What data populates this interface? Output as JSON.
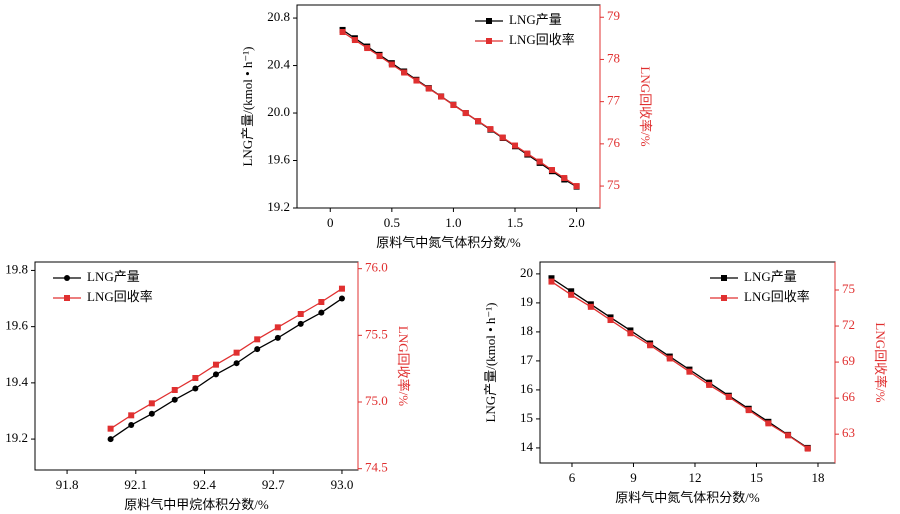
{
  "chart_data": [
    {
      "type": "line",
      "xlabel": "原料气中氮气体积分数/%",
      "ylabel": "LNG产量/(kmol • h⁻¹)",
      "y2label": "LNG回收率/%",
      "x": [
        0.1,
        0.2,
        0.3,
        0.4,
        0.5,
        0.6,
        0.7,
        0.8,
        0.9,
        1.0,
        1.1,
        1.2,
        1.3,
        1.4,
        1.5,
        1.6,
        1.7,
        1.8,
        1.9,
        2.0
      ],
      "xlim": [
        -0.27,
        2.19
      ],
      "xticks": [
        0,
        0.5,
        {
          "value": 1,
          "label": "1.0"
        },
        1.5,
        {
          "value": 2,
          "label": "2.0"
        }
      ],
      "ylim": [
        19.2,
        20.91
      ],
      "yticks": [
        19.2,
        19.6,
        {
          "value": 20,
          "label": "20.0"
        },
        20.4,
        20.8
      ],
      "y2lim": [
        74.48,
        79.29
      ],
      "y2ticks": [
        75,
        76,
        77,
        78,
        79
      ],
      "legend": "upper right",
      "series": [
        {
          "name": "LNG产量",
          "color": "#000000",
          "marker": "square",
          "values": [
            20.7,
            20.63,
            20.56,
            20.49,
            20.42,
            20.35,
            20.28,
            20.21,
            20.14,
            20.07,
            20.0,
            19.93,
            19.86,
            19.79,
            19.72,
            19.65,
            19.58,
            19.51,
            19.44,
            19.38
          ]
        },
        {
          "name": "LNG回收率",
          "color": "#e03030",
          "marker": "square",
          "axis": "y2",
          "values": [
            78.65,
            78.46,
            78.27,
            78.08,
            77.88,
            77.69,
            77.5,
            77.31,
            77.12,
            76.92,
            76.73,
            76.54,
            76.35,
            76.15,
            75.96,
            75.77,
            75.58,
            75.38,
            75.19,
            75.0
          ]
        }
      ]
    },
    {
      "type": "line",
      "xlabel": "原料气中甲烷体积分数/%",
      "ylabel": "LNG产量/(kmol • h⁻¹)",
      "y2label": "LNG回收率/%",
      "x": [
        91.99,
        92.08,
        92.17,
        92.27,
        92.36,
        92.45,
        92.54,
        92.63,
        92.72,
        92.82,
        92.91,
        93.0
      ],
      "xlim": [
        91.66,
        93.07
      ],
      "xticks": [
        91.8,
        92.1,
        92.4,
        92.7,
        {
          "value": 93,
          "label": "93.0"
        }
      ],
      "ylim": [
        19.09,
        19.83
      ],
      "yticks": [
        19.2,
        19.4,
        19.6,
        19.8
      ],
      "y2lim": [
        74.49,
        76.05
      ],
      "y2ticks": [
        74.5,
        {
          "value": 75,
          "label": "75.0"
        },
        75.5,
        {
          "value": 76,
          "label": "76.0"
        }
      ],
      "legend": "upper left",
      "series": [
        {
          "name": "LNG产量",
          "color": "#000000",
          "marker": "circle",
          "values": [
            19.2,
            19.25,
            19.29,
            19.34,
            19.38,
            19.43,
            19.47,
            19.52,
            19.56,
            19.61,
            19.65,
            19.7
          ]
        },
        {
          "name": "LNG回收率",
          "color": "#e03030",
          "marker": "square",
          "axis": "y2",
          "values": [
            74.8,
            74.9,
            74.99,
            75.09,
            75.18,
            75.28,
            75.37,
            75.47,
            75.56,
            75.66,
            75.75,
            75.85
          ]
        }
      ]
    },
    {
      "type": "line",
      "xlabel": "原料气中氮气体积分数/%",
      "ylabel": "LNG产量/(kmol • h⁻¹)",
      "y2label": "LNG回收率/%",
      "x": [
        5.0,
        5.96,
        6.92,
        7.88,
        8.85,
        9.81,
        10.77,
        11.73,
        12.69,
        13.65,
        14.62,
        15.58,
        16.54,
        17.5
      ],
      "xlim": [
        4.44,
        18.83
      ],
      "xticks": [
        6,
        9,
        12,
        15,
        18
      ],
      "ylim": [
        13.48,
        20.41
      ],
      "yticks": [
        14,
        15,
        16,
        17,
        18,
        19,
        20
      ],
      "y2lim": [
        60.6,
        77.33
      ],
      "y2ticks": [
        63,
        66,
        69,
        72,
        75
      ],
      "legend": "upper right",
      "series": [
        {
          "name": "LNG产量",
          "color": "#000000",
          "marker": "square",
          "values": [
            19.85,
            19.4,
            18.95,
            18.5,
            18.05,
            17.6,
            17.15,
            16.7,
            16.25,
            15.8,
            15.35,
            14.9,
            14.45,
            14.0
          ]
        },
        {
          "name": "LNG回收率",
          "color": "#e03030",
          "marker": "square",
          "axis": "y2",
          "values": [
            75.7,
            74.6,
            73.6,
            72.5,
            71.4,
            70.4,
            69.3,
            68.2,
            67.1,
            66.1,
            65.0,
            63.9,
            62.9,
            61.8
          ]
        }
      ]
    }
  ]
}
